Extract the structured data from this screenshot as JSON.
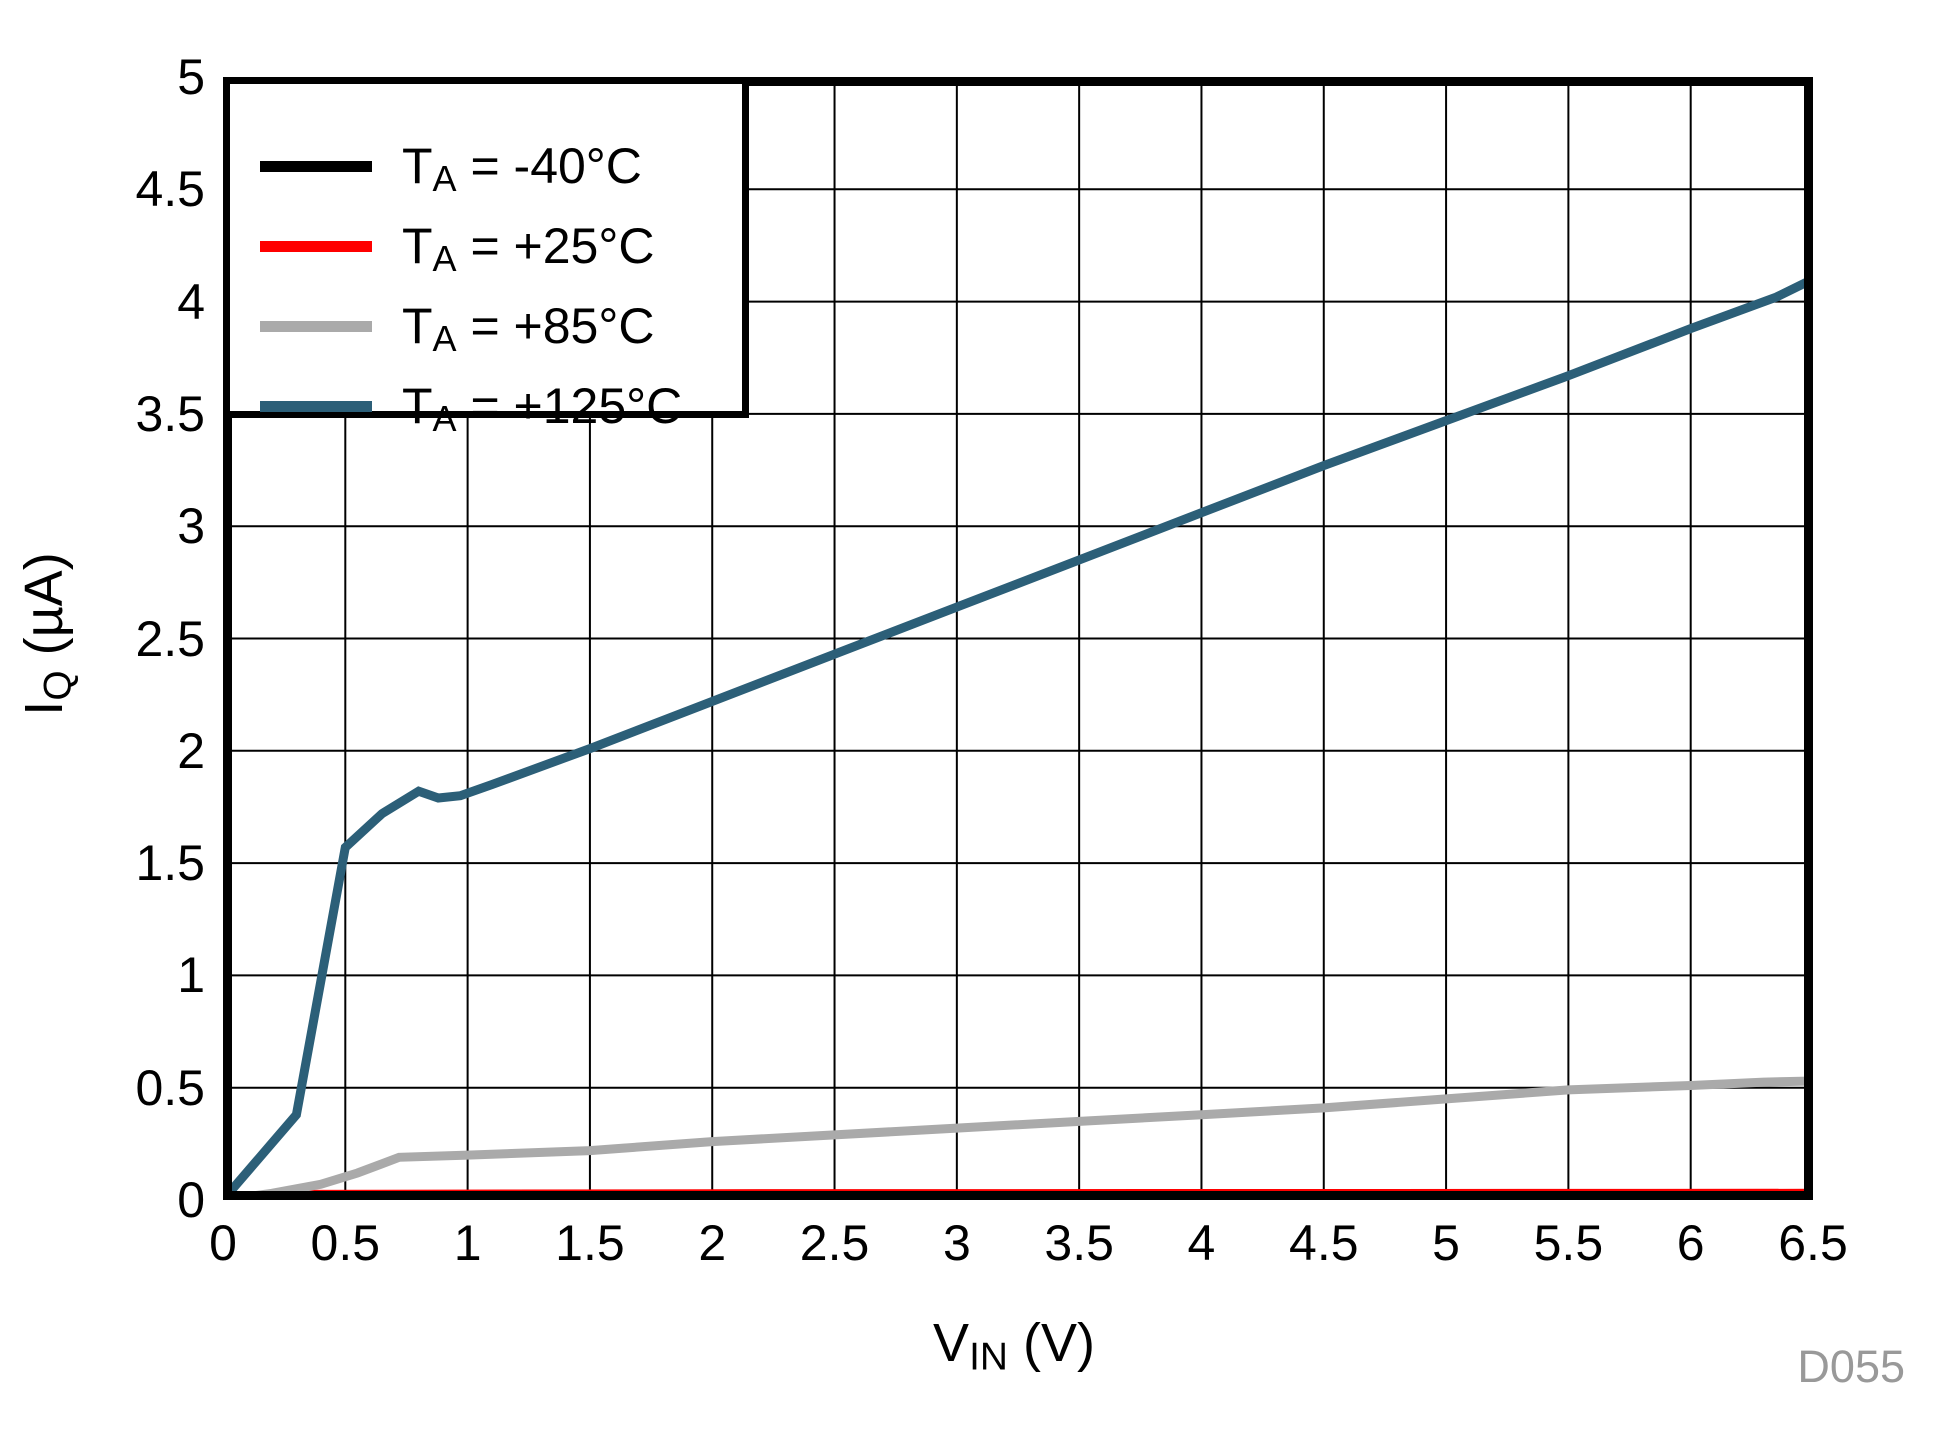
{
  "chart_data": {
    "type": "line",
    "title": "",
    "xlabel": {
      "main": "V",
      "sub": "IN",
      "rest": " (V)"
    },
    "ylabel": {
      "main": "I",
      "sub": "Q",
      "rest": " (µA)"
    },
    "xlim": [
      0,
      6.5
    ],
    "ylim": [
      0,
      5
    ],
    "xticks": [
      "0",
      "0.5",
      "1",
      "1.5",
      "2",
      "2.5",
      "3",
      "3.5",
      "4",
      "4.5",
      "5",
      "5.5",
      "6",
      "6.5"
    ],
    "yticks": [
      "0",
      "0.5",
      "1",
      "1.5",
      "2",
      "2.5",
      "3",
      "3.5",
      "4",
      "4.5",
      "5"
    ],
    "grid": true,
    "grid_color": "#000000",
    "axis_color": "#000000",
    "legend_position": "top-left",
    "watermark": "D055",
    "series": [
      {
        "name": "TA = -40°C",
        "label": {
          "pre": "T",
          "sub": "A",
          "rest": " = -40°C"
        },
        "color": "#000000",
        "points": [
          [
            0,
            0
          ],
          [
            1,
            0.008
          ],
          [
            3,
            0.009
          ],
          [
            6.5,
            0.01
          ]
        ]
      },
      {
        "name": "TA = +25°C",
        "label": {
          "pre": "T",
          "sub": "A",
          "rest": " = +25°C"
        },
        "color": "#FF0000",
        "points": [
          [
            0,
            0
          ],
          [
            0.3,
            0.025
          ],
          [
            2,
            0.028
          ],
          [
            6.5,
            0.03
          ]
        ]
      },
      {
        "name": "TA = +85°C",
        "label": {
          "pre": "T",
          "sub": "A",
          "rest": " = +85°C"
        },
        "color": "#AAAAAA",
        "points": [
          [
            0,
            0
          ],
          [
            0.2,
            0.03
          ],
          [
            0.4,
            0.07
          ],
          [
            0.55,
            0.12
          ],
          [
            0.72,
            0.19
          ],
          [
            1.0,
            0.2
          ],
          [
            1.5,
            0.22
          ],
          [
            2.0,
            0.26
          ],
          [
            2.5,
            0.29
          ],
          [
            3.0,
            0.32
          ],
          [
            3.5,
            0.35
          ],
          [
            4.0,
            0.38
          ],
          [
            4.5,
            0.41
          ],
          [
            5.0,
            0.45
          ],
          [
            5.5,
            0.49
          ],
          [
            6.0,
            0.51
          ],
          [
            6.3,
            0.525
          ],
          [
            6.5,
            0.53
          ]
        ]
      },
      {
        "name": "TA = +125°C",
        "label": {
          "pre": "T",
          "sub": "A",
          "rest": " = +125°C"
        },
        "color": "#2C5F78",
        "points": [
          [
            0,
            0
          ],
          [
            0.3,
            0.38
          ],
          [
            0.5,
            1.57
          ],
          [
            0.65,
            1.72
          ],
          [
            0.8,
            1.82
          ],
          [
            0.88,
            1.79
          ],
          [
            0.97,
            1.8
          ],
          [
            1.1,
            1.85
          ],
          [
            1.5,
            2.01
          ],
          [
            2.0,
            2.22
          ],
          [
            2.5,
            2.43
          ],
          [
            3.0,
            2.64
          ],
          [
            3.5,
            2.85
          ],
          [
            4.0,
            3.06
          ],
          [
            4.5,
            3.27
          ],
          [
            5.0,
            3.47
          ],
          [
            5.5,
            3.67
          ],
          [
            6.0,
            3.88
          ],
          [
            6.35,
            4.02
          ],
          [
            6.5,
            4.1
          ]
        ]
      }
    ]
  }
}
